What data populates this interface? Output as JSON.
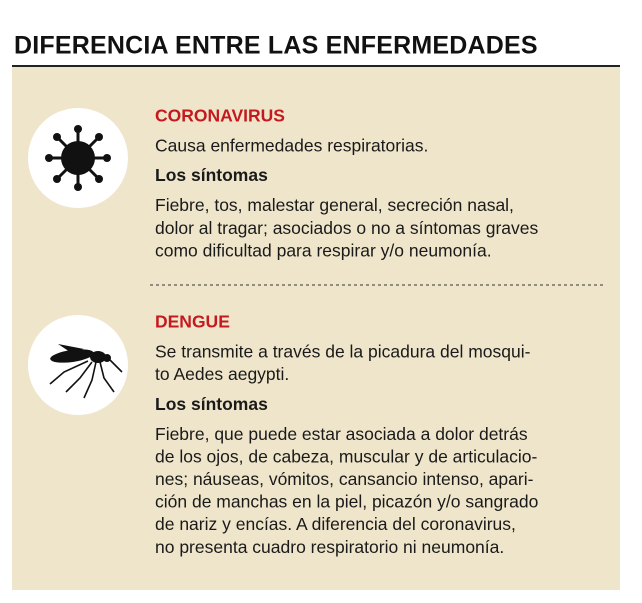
{
  "title": "DIFERENCIA ENTRE LAS ENFERMEDADES",
  "sections": [
    {
      "name": "CORONAVIRUS",
      "description": [
        "Causa enfermedades respiratorias."
      ],
      "symptoms_heading": "Los síntomas",
      "symptoms": [
        "Fiebre, tos, malestar general, secreción nasal,",
        "dolor al tragar; asociados o no a síntomas graves",
        "como dificultad para respirar y/o neumonía."
      ]
    },
    {
      "name": "DENGUE",
      "description": [
        "Se transmite a través de la picadura del mosqui-",
        "to Aedes aegypti."
      ],
      "symptoms_heading": "Los síntomas",
      "symptoms": [
        "Fiebre, que puede estar asociada a dolor detrás",
        "de los ojos, de cabeza, muscular y de articulacio-",
        "nes; náuseas, vómitos, cansancio intenso, apari-",
        "ción de manchas en la piel, picazón y/o sangrado",
        "de nariz y encías. A diferencia del coronavirus,",
        "no presenta cuadro respiratorio ni neumonía."
      ]
    }
  ]
}
